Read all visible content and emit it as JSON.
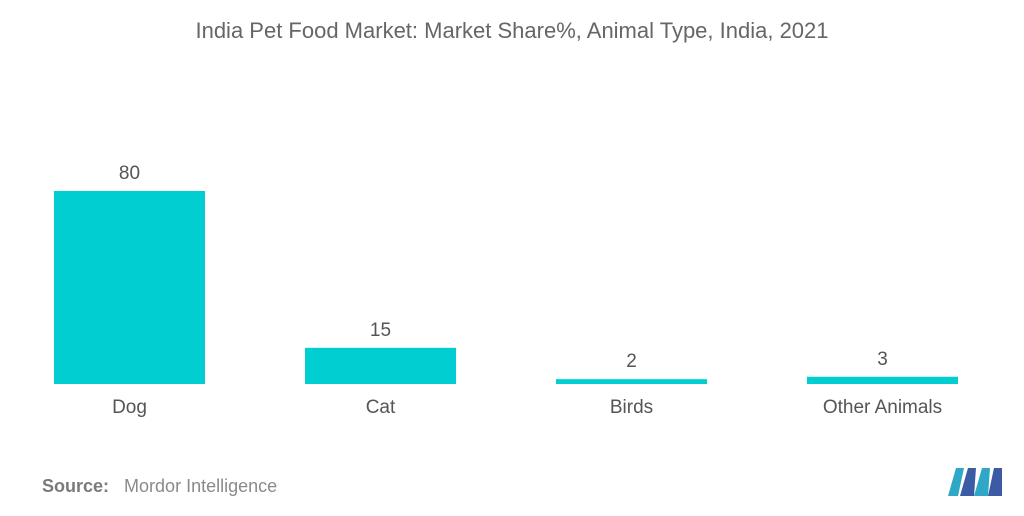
{
  "title": "India Pet Food Market: Market Share%, Animal Type, India, 2021",
  "source": {
    "label": "Source:",
    "text": "Mordor Intelligence"
  },
  "logo_icon": "mordor-intelligence-logo",
  "colors": {
    "bar": "#00CED1",
    "text": "#555555",
    "logo": "#2FA8C8"
  },
  "chart_data": {
    "type": "bar",
    "title": "India Pet Food Market: Market Share%, Animal Type, India, 2021",
    "categories": [
      "Dog",
      "Cat",
      "Birds",
      "Other Animals"
    ],
    "values": [
      80,
      15,
      2,
      3
    ],
    "data_labels": [
      "80",
      "15",
      "2",
      "3"
    ],
    "ylim": [
      0,
      80
    ],
    "grid": false,
    "legend": "none"
  }
}
